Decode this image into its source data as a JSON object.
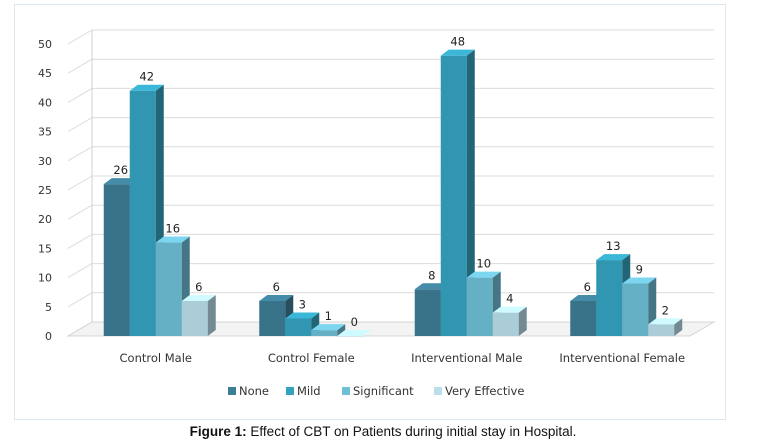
{
  "chart_data": {
    "type": "bar",
    "title": "",
    "xlabel": "",
    "ylabel": "",
    "ylim": [
      0,
      50
    ],
    "yticks": [
      0,
      5,
      10,
      15,
      20,
      25,
      30,
      35,
      40,
      45,
      50
    ],
    "categories": [
      "Control Male",
      "Control Female",
      "Interventional Male",
      "Interventional Female"
    ],
    "series": [
      {
        "name": "None",
        "values": [
          26,
          6,
          8,
          6
        ],
        "color": "#3d7d96"
      },
      {
        "name": "Mild",
        "values": [
          42,
          3,
          48,
          13
        ],
        "color": "#35a3c0"
      },
      {
        "name": "Significant",
        "values": [
          16,
          1,
          10,
          9
        ],
        "color": "#6fbfd6"
      },
      {
        "name": "Very Effective",
        "values": [
          6,
          0,
          4,
          2
        ],
        "color": "#b9dfeb"
      }
    ],
    "grid": true,
    "legend_position": "bottom",
    "style": "3d-clustered-column"
  },
  "caption": {
    "label": "Figure 1:",
    "text": " Effect of CBT on Patients during initial stay in Hospital."
  }
}
